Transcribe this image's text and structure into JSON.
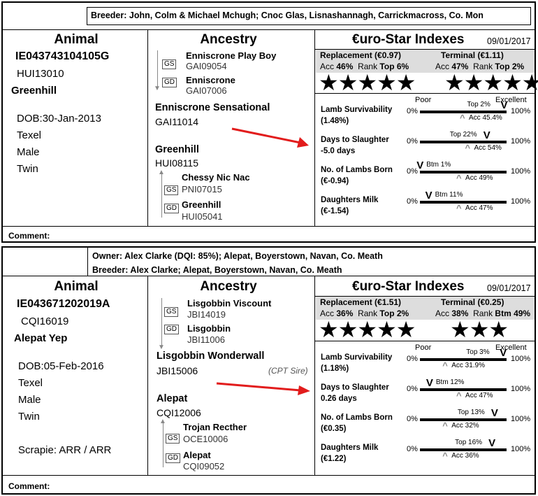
{
  "cards": [
    {
      "owner_text": "",
      "breeder_text": "Breeder: John, Colm & Michael Mchugh; Cnoc Glas, Lisnashannagh, Carrickmacross, Co. Mon",
      "animal": {
        "heading": "Animal",
        "id": "IE043743104105G",
        "herd_code": "HUI13010",
        "name": "Greenhill",
        "dob_label": "DOB:",
        "dob": "30-Jan-2013",
        "breed": "Texel",
        "sex": "Male",
        "birth_type": "Twin",
        "scrapie": ""
      },
      "ancestry": {
        "heading": "Ancestry",
        "gs_label": "GS",
        "gd_label": "GD",
        "sire_gs_name": "Enniscrone Play Boy",
        "sire_gs_code": "GAI09054",
        "sire_gd_name": "Enniscrone",
        "sire_gd_code": "GAI07006",
        "sire_name": "Enniscrone Sensational",
        "sire_code": "GAI11014",
        "sire_note": "",
        "dam_name": "Greenhill",
        "dam_code": "HUI08115",
        "dam_gs_name": "Chessy Nic Nac",
        "dam_gs_code": "PNI07015",
        "dam_gd_name": "Greenhill",
        "dam_gd_code": "HUI05041"
      },
      "indexes": {
        "heading": "€uro-Star Indexes",
        "date": "09/01/2017",
        "replacement_label": "Replacement (€0.97)",
        "replacement_acc_label": "Acc",
        "replacement_acc": "46%",
        "replacement_rank_label": "Rank",
        "replacement_rank": "Top 6%",
        "replacement_stars": "★★★★★",
        "terminal_label": "Terminal  (€1.11)",
        "terminal_acc_label": "Acc",
        "terminal_acc": "47%",
        "terminal_rank_label": "Rank",
        "terminal_rank": "Top 2%",
        "terminal_stars": "★★★★★",
        "poor_label": "Poor",
        "excellent_label": "Excellent",
        "traits": [
          {
            "name": "Lamb Survivability",
            "value": "(1.48%)",
            "rank_label": "Top 2%",
            "rank_pos": 0.98,
            "acc_label": "Acc 45.4%",
            "acc_pos": 0.5
          },
          {
            "name": "Days to Slaughter",
            "value": "-5.0 days",
            "rank_label": "Top 22%",
            "rank_pos": 0.78,
            "acc_label": "Acc 54%",
            "acc_pos": 0.56
          },
          {
            "name": "No. of Lambs Born",
            "value": "(€-0.94)",
            "rank_label": "Btm 1%",
            "rank_pos": 0.01,
            "acc_label": "Acc 49%",
            "acc_pos": 0.46
          },
          {
            "name": "Daughters Milk",
            "value": "(€-1.54)",
            "rank_label": "Btm 11%",
            "rank_pos": 0.11,
            "acc_label": "Acc 47%",
            "acc_pos": 0.46
          }
        ]
      },
      "comment_label": "Comment:"
    },
    {
      "owner_text": "Owner: Alex Clarke (DQI: 85%); Alepat, Boyerstown, Navan, Co. Meath",
      "breeder_text": "Breeder: Alex Clarke; Alepat, Boyerstown, Navan, Co. Meath",
      "animal": {
        "heading": "Animal",
        "id": "IE043671202019A",
        "herd_code": "CQI16019",
        "name": "Alepat Yep",
        "dob_label": "DOB:",
        "dob": "05-Feb-2016",
        "breed": "Texel",
        "sex": "Male",
        "birth_type": "Twin",
        "scrapie": "Scrapie: ARR / ARR"
      },
      "ancestry": {
        "heading": "Ancestry",
        "gs_label": "GS",
        "gd_label": "GD",
        "sire_gs_name": "Lisgobbin Viscount",
        "sire_gs_code": "JBI14019",
        "sire_gd_name": "Lisgobbin",
        "sire_gd_code": "JBI11006",
        "sire_name": "Lisgobbin Wonderwall",
        "sire_code": "JBI15006",
        "sire_note": "(CPT Sire)",
        "dam_name": "Alepat",
        "dam_code": "CQI12006",
        "dam_gs_name": "Trojan Recther",
        "dam_gs_code": "OCE10006",
        "dam_gd_name": "Alepat",
        "dam_gd_code": "CQI09052"
      },
      "indexes": {
        "heading": "€uro-Star Indexes",
        "date": "09/01/2017",
        "replacement_label": "Replacement (€1.51)",
        "replacement_acc_label": "Acc",
        "replacement_acc": "36%",
        "replacement_rank_label": "Rank",
        "replacement_rank": "Top 2%",
        "replacement_stars": "★★★★★",
        "terminal_label": "Terminal  (€0.25)",
        "terminal_acc_label": "Acc",
        "terminal_acc": "38%",
        "terminal_rank_label": "Rank",
        "terminal_rank": "Btm 49%",
        "terminal_stars": "★★★",
        "poor_label": "Poor",
        "excellent_label": "Excellent",
        "traits": [
          {
            "name": "Lamb Survivability",
            "value": "(1.18%)",
            "rank_label": "Top 3%",
            "rank_pos": 0.97,
            "acc_label": "Acc 31.9%",
            "acc_pos": 0.3
          },
          {
            "name": "Days to Slaughter",
            "value": "0.26 days",
            "rank_label": "Btm 12%",
            "rank_pos": 0.12,
            "acc_label": "Acc 47%",
            "acc_pos": 0.46
          },
          {
            "name": "No. of Lambs Born",
            "value": "(€0.35)",
            "rank_label": "Top 13%",
            "rank_pos": 0.87,
            "acc_label": "Acc 32%",
            "acc_pos": 0.3
          },
          {
            "name": "Daughters Milk",
            "value": "(€1.22)",
            "rank_label": "Top 16%",
            "rank_pos": 0.84,
            "acc_label": "Acc 36%",
            "acc_pos": 0.3
          }
        ]
      },
      "comment_label": "Comment:"
    }
  ]
}
